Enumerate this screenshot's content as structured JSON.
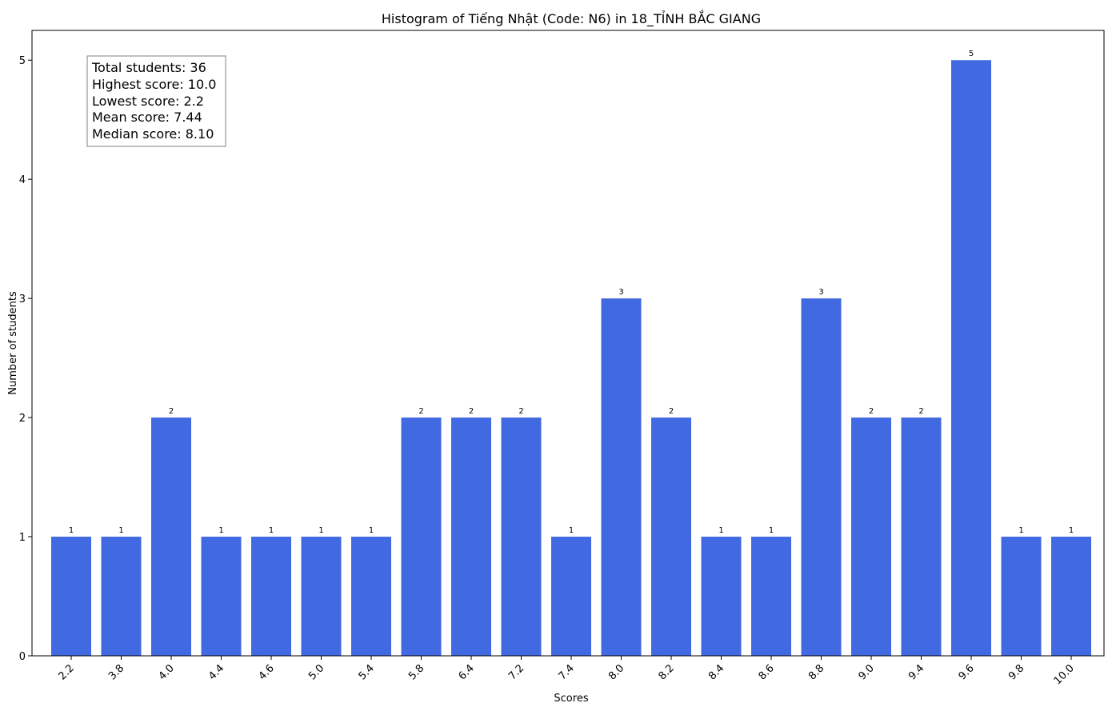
{
  "chart_data": {
    "type": "bar",
    "title": "Histogram of Tiếng Nhật (Code: N6) in 18_TỈNH BẮC GIANG",
    "xlabel": "Scores",
    "ylabel": "Number of students",
    "categories": [
      "2.2",
      "3.8",
      "4.0",
      "4.4",
      "4.6",
      "5.0",
      "5.4",
      "5.8",
      "6.4",
      "7.2",
      "7.4",
      "8.0",
      "8.2",
      "8.4",
      "8.6",
      "8.8",
      "9.0",
      "9.4",
      "9.6",
      "9.8",
      "10.0"
    ],
    "values": [
      1,
      1,
      2,
      1,
      1,
      1,
      1,
      2,
      2,
      2,
      1,
      3,
      2,
      1,
      1,
      3,
      2,
      2,
      5,
      1,
      1
    ],
    "ylim": [
      0,
      5.25
    ],
    "yticks": [
      0,
      1,
      2,
      3,
      4,
      5
    ],
    "grid": false,
    "bar_color": "#4169e1",
    "stats_box": [
      "Total students: 36",
      "Highest score: 10.0",
      "Lowest score: 2.2",
      "Mean score: 7.44",
      "Median score: 8.10"
    ]
  }
}
